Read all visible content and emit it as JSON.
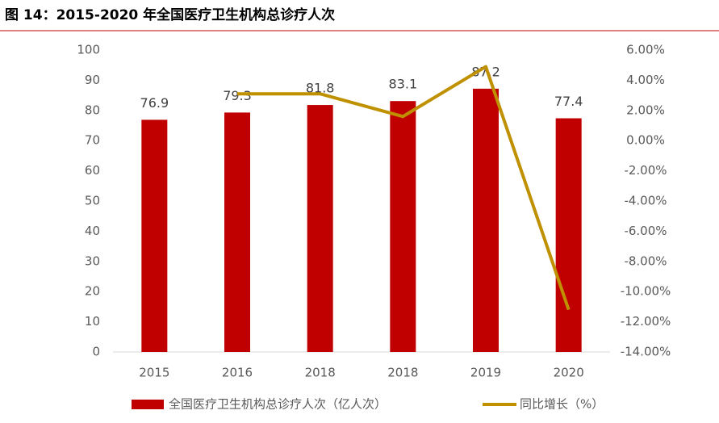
{
  "chart_data": {
    "type": "bar",
    "title": "图 14：2015-2020 年全国医疗卫生机构总诊疗人次",
    "categories": [
      "2015",
      "2016",
      "2018",
      "2018",
      "2019",
      "2020"
    ],
    "series": [
      {
        "name": "全国医疗卫生机构总诊疗人次（亿人次）",
        "type": "bar",
        "color": "#c00000",
        "values": [
          76.9,
          79.3,
          81.8,
          83.1,
          87.2,
          77.4
        ]
      },
      {
        "name": "同比增长（%）",
        "type": "line",
        "axis": "y2",
        "color": "#bf9000",
        "values": [
          null,
          3.1,
          3.1,
          1.6,
          4.9,
          -11.2
        ]
      }
    ],
    "ylim": [
      0,
      100
    ],
    "yticks": [
      0,
      10,
      20,
      30,
      40,
      50,
      60,
      70,
      80,
      90,
      100
    ],
    "y2lim": [
      -14,
      6
    ],
    "y2ticks": [
      {
        "value": -14,
        "label": "-14.00%"
      },
      {
        "value": -12,
        "label": "-12.00%"
      },
      {
        "value": -10,
        "label": "-10.00%"
      },
      {
        "value": -8,
        "label": "-8.00%"
      },
      {
        "value": -6,
        "label": "-6.00%"
      },
      {
        "value": -4,
        "label": "-4.00%"
      },
      {
        "value": -2,
        "label": "-2.00%"
      },
      {
        "value": 0,
        "label": "0.00%"
      },
      {
        "value": 2,
        "label": "2.00%"
      },
      {
        "value": 4,
        "label": "4.00%"
      },
      {
        "value": 6,
        "label": "6.00%"
      }
    ],
    "legend": "bottom"
  }
}
